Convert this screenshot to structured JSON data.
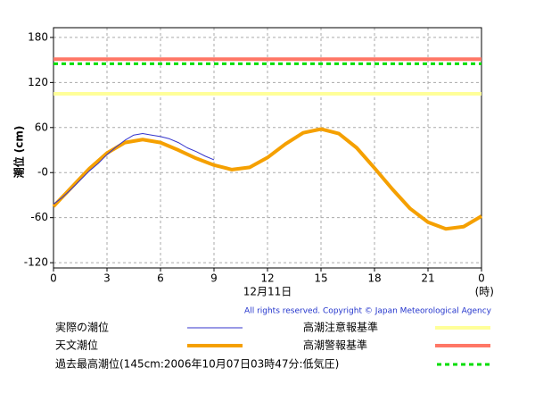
{
  "chart_data": {
    "type": "line",
    "ylabel": "潮位 (cm)",
    "xlabel": "12月11日",
    "x_unit": "(時)",
    "copyright": "All rights reserved. Copyright © Japan Meteorological Agency",
    "xlim": [
      0,
      24
    ],
    "xticks": [
      0,
      3,
      6,
      9,
      12,
      15,
      18,
      21,
      {
        "value": 24,
        "label": "0"
      }
    ],
    "ylim": [
      -127,
      193
    ],
    "yticks": [
      {
        "value": -120,
        "label": "-120"
      },
      {
        "value": -60,
        "label": "-60"
      },
      {
        "value": 0,
        "label": "-0"
      },
      60,
      120,
      180
    ],
    "grid": true,
    "series": [
      {
        "name": "実際の潮位",
        "color": "#3333cc",
        "width": 1,
        "x": [
          0,
          0.5,
          1,
          1.5,
          2,
          2.5,
          3,
          3.5,
          4,
          4.5,
          5,
          5.5,
          6,
          6.5,
          7,
          7.5,
          8,
          8.5,
          9
        ],
        "values": [
          -42,
          -33,
          -22,
          -10,
          2,
          12,
          24,
          34,
          43,
          50,
          52,
          50,
          48,
          45,
          40,
          33,
          28,
          22,
          17
        ]
      },
      {
        "name": "天文潮位",
        "color": "#f5a000",
        "width": 4,
        "x": [
          0,
          1,
          2,
          3,
          4,
          5,
          6,
          7,
          8,
          9,
          10,
          11,
          12,
          13,
          14,
          15,
          16,
          17,
          18,
          19,
          20,
          21,
          22,
          23,
          24
        ],
        "values": [
          -45,
          -20,
          5,
          26,
          40,
          44,
          40,
          30,
          19,
          10,
          4,
          7,
          20,
          38,
          53,
          58,
          52,
          33,
          6,
          -22,
          -48,
          -66,
          -75,
          -72,
          -58
        ]
      }
    ],
    "reference_lines": [
      {
        "name": "高潮注意報基準",
        "value": 105,
        "color": "#ffff99",
        "dashed": false
      },
      {
        "name": "高潮警報基準",
        "value": 151,
        "color": "#ff7766",
        "dashed": false
      },
      {
        "name": "過去最高潮位(145cm:2006年10月07日03時47分:低気圧)",
        "value": 145,
        "color": "#00dd00",
        "dashed": true
      }
    ]
  }
}
